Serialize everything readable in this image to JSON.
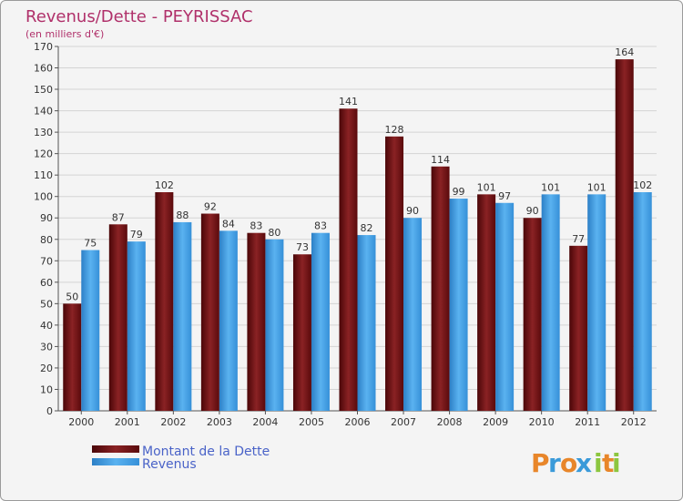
{
  "chart_data": {
    "type": "bar",
    "title": "Revenus/Dette - PEYRISSAC",
    "subtitle": "(en milliers d'€)",
    "categories": [
      "2000",
      "2001",
      "2002",
      "2003",
      "2004",
      "2005",
      "2006",
      "2007",
      "2008",
      "2009",
      "2010",
      "2011",
      "2012"
    ],
    "series": [
      {
        "name": "Montant de la Dette",
        "color": "#7a1416",
        "values": [
          50,
          87,
          102,
          92,
          83,
          73,
          141,
          128,
          114,
          101,
          90,
          77,
          164
        ]
      },
      {
        "name": "Revenus",
        "color": "#4aa3e6",
        "values": [
          75,
          79,
          88,
          84,
          80,
          83,
          82,
          90,
          99,
          97,
          101,
          101,
          102
        ]
      }
    ],
    "ylim": [
      0,
      170
    ],
    "ytick_step": 10,
    "grid": true,
    "legend_position": "bottom-left"
  },
  "logo": {
    "letters": [
      "P",
      "r",
      "o",
      "x",
      "i",
      "t",
      "i"
    ],
    "colors": [
      "#e8862a",
      "#3a9ad9",
      "#e8862a",
      "#3a9ad9",
      "#8cc63f",
      "#e8862a",
      "#8cc63f"
    ]
  }
}
